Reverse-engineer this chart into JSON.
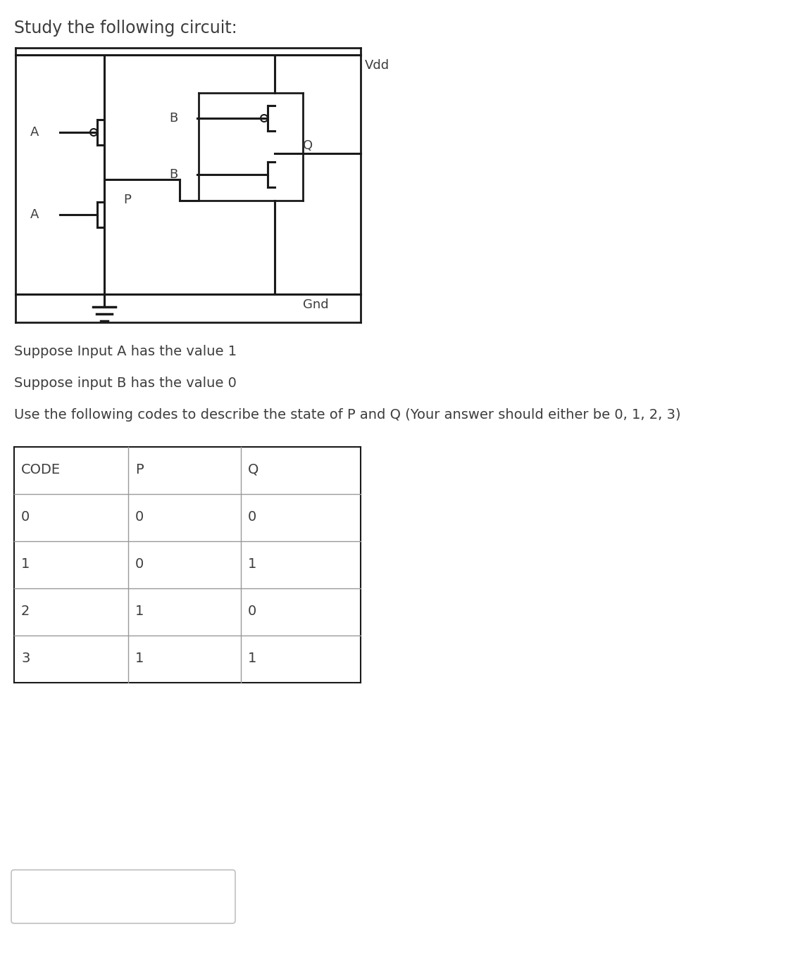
{
  "title": "Study the following circuit:",
  "text_line1": "Suppose Input A has the value 1",
  "text_line2": "Suppose input B has the value 0",
  "text_line3": "Use the following codes to describe the state of P and Q (Your answer should either be 0, 1, 2, 3)",
  "table_headers": [
    "CODE",
    "P",
    "Q"
  ],
  "table_rows": [
    [
      "0",
      "0",
      "0"
    ],
    [
      "1",
      "0",
      "1"
    ],
    [
      "2",
      "1",
      "0"
    ],
    [
      "3",
      "1",
      "1"
    ]
  ],
  "bg_color": "#ffffff",
  "text_color": "#3d3d3d",
  "line_color": "#1a1a1a",
  "table_line_color": "#999999",
  "font_size_title": 17,
  "font_size_body": 14,
  "font_size_table": 14,
  "font_size_circuit": 13
}
